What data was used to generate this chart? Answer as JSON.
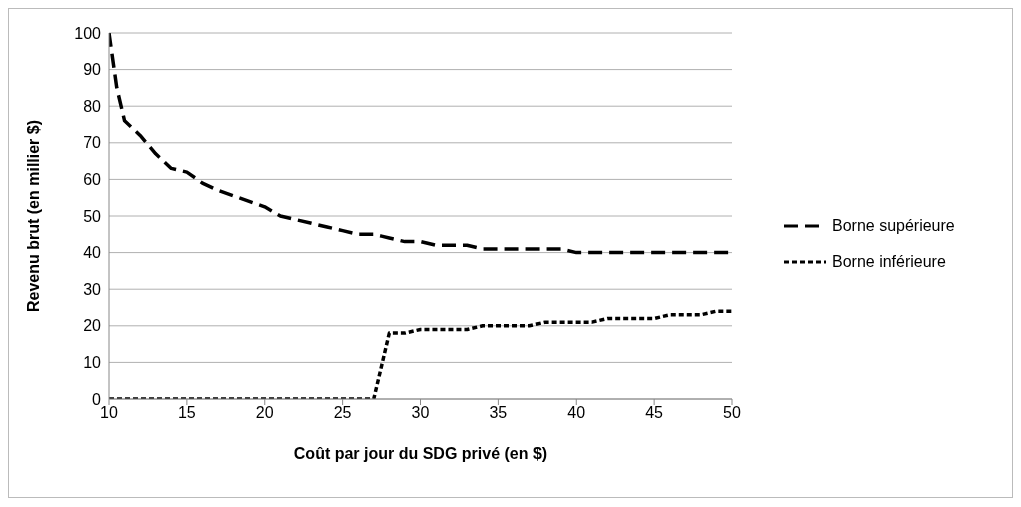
{
  "chart_data": {
    "type": "line",
    "xlabel": "Coût par jour du SDG privé (en $)",
    "ylabel": "Revenu brut (en millier $)",
    "x": [
      10,
      10.5,
      11,
      12,
      13,
      14,
      15,
      16,
      17,
      18,
      19,
      20,
      21,
      22,
      23,
      24,
      25,
      26,
      27,
      27.5,
      28,
      29,
      30,
      31,
      32,
      33,
      34,
      35,
      36,
      37,
      38,
      39,
      40,
      41,
      42,
      43,
      44,
      45,
      46,
      47,
      48,
      49,
      50
    ],
    "series": [
      {
        "name": "Borne supérieure",
        "color": "#000000",
        "line_style": "dashed",
        "values": [
          100,
          85,
          76,
          72,
          67,
          63,
          62,
          59,
          57,
          55.5,
          54,
          52.5,
          50,
          49,
          48,
          47,
          46,
          45,
          45,
          44.5,
          44,
          43,
          43,
          42,
          42,
          42,
          41,
          41,
          41,
          41,
          41,
          41,
          40,
          40,
          40,
          40,
          40,
          40,
          40,
          40,
          40,
          40,
          40
        ]
      },
      {
        "name": "Borne inférieure",
        "color": "#000000",
        "line_style": "dotted",
        "values": [
          0,
          0,
          0,
          0,
          0,
          0,
          0,
          0,
          0,
          0,
          0,
          0,
          0,
          0,
          0,
          0,
          0,
          0,
          0,
          9,
          18,
          18,
          19,
          19,
          19,
          19,
          20,
          20,
          20,
          20,
          21,
          21,
          21,
          21,
          22,
          22,
          22,
          22,
          23,
          23,
          23,
          24,
          24
        ]
      }
    ],
    "xlim": [
      10,
      50
    ],
    "xticks": [
      10,
      15,
      20,
      25,
      30,
      35,
      40,
      45,
      50
    ],
    "ylim": [
      0,
      100
    ],
    "yticks": [
      0,
      10,
      20,
      30,
      40,
      50,
      60,
      70,
      80,
      90,
      100
    ],
    "grid": "y",
    "legend": "right",
    "marker": "none"
  }
}
